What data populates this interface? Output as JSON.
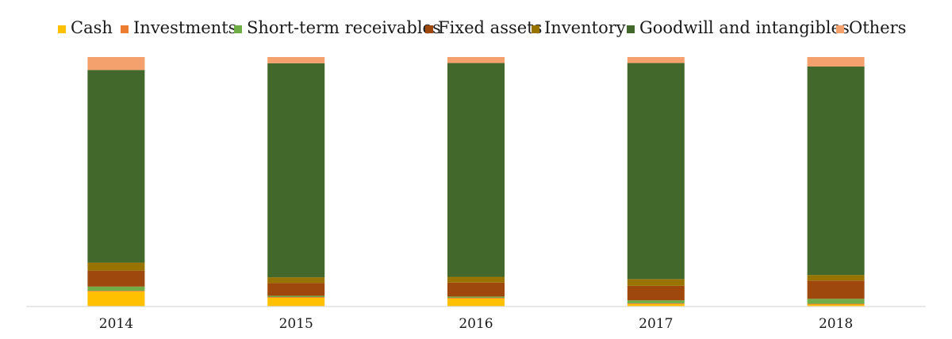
{
  "chart_data": {
    "type": "bar",
    "stacked": true,
    "percent_stacked": true,
    "categories": [
      "2014",
      "2015",
      "2016",
      "2017",
      "2018"
    ],
    "series": [
      {
        "name": "Cash",
        "color": "#FFC000",
        "values": [
          6.0,
          3.5,
          3.2,
          1.0,
          0.8
        ]
      },
      {
        "name": "Investments",
        "color": "#ED7D31",
        "values": [
          0.3,
          0.3,
          0.3,
          0.3,
          0.3
        ]
      },
      {
        "name": "Short-term receivables",
        "color": "#70AD47",
        "values": [
          1.7,
          0.5,
          0.5,
          1.2,
          2.0
        ]
      },
      {
        "name": "Fixed assets",
        "color": "#9E480E",
        "values": [
          6.4,
          5.1,
          5.6,
          5.8,
          7.3
        ]
      },
      {
        "name": "Inventory",
        "color": "#997300",
        "values": [
          3.2,
          2.3,
          2.3,
          2.7,
          2.2
        ]
      },
      {
        "name": "Goodwill and intangibles",
        "color": "#43682B",
        "values": [
          77.2,
          85.8,
          85.7,
          86.6,
          83.6
        ]
      },
      {
        "name": "Others",
        "color": "#F4A16E",
        "values": [
          5.2,
          2.5,
          2.4,
          2.4,
          3.8
        ]
      }
    ],
    "ylim": [
      0,
      100
    ],
    "grid": false,
    "legend": "top"
  }
}
